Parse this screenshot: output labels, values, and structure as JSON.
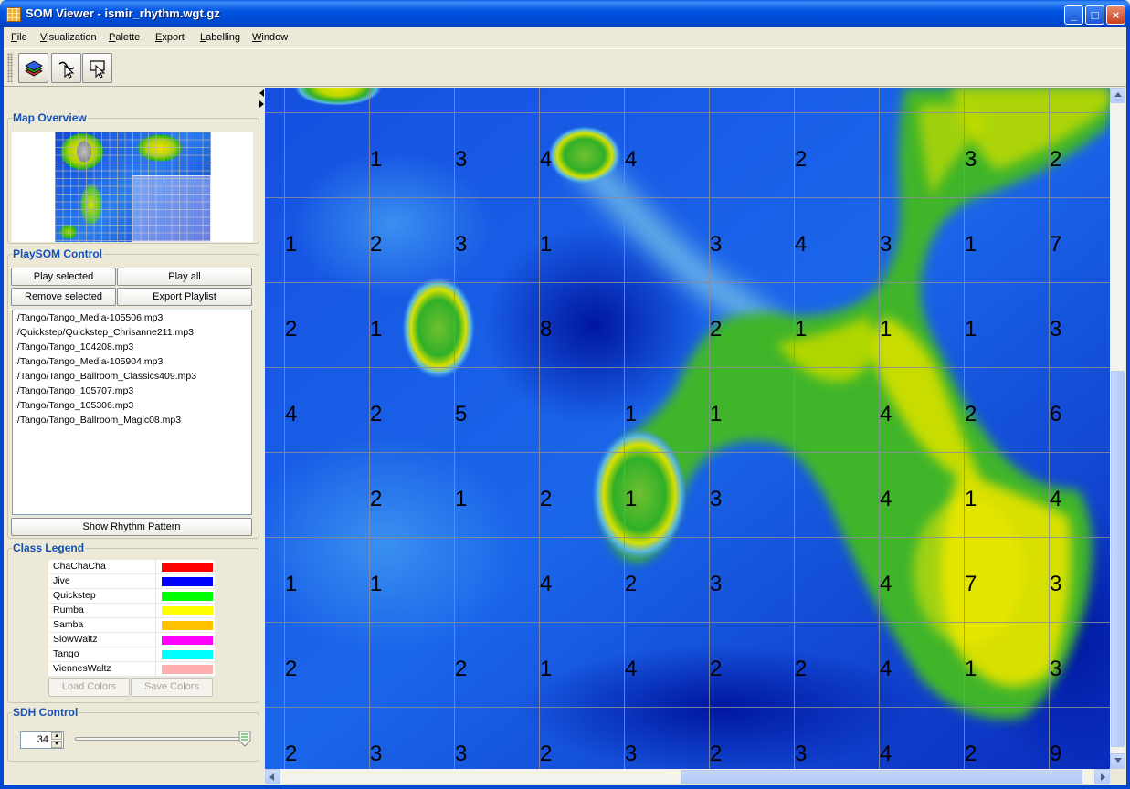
{
  "window": {
    "title": "SOM Viewer - ismir_rhythm.wgt.gz",
    "minimize": "_",
    "maximize": "□",
    "close": "×"
  },
  "menu": [
    "File",
    "Visualization",
    "Palette",
    "Export",
    "Labelling",
    "Window"
  ],
  "toolbar": {
    "icons": [
      "layers-icon",
      "select-pointer-icon",
      "rectangle-select-icon"
    ]
  },
  "map_overview": {
    "title": "Map Overview"
  },
  "playsom": {
    "title": "PlaySOM Control",
    "play_selected": "Play selected",
    "play_all": "Play all",
    "remove_selected": "Remove selected",
    "export_playlist": "Export Playlist",
    "playlist": [
      "./Tango/Tango_Media-105506.mp3",
      "./Quickstep/Quickstep_Chrisanne211.mp3",
      "./Tango/Tango_104208.mp3",
      "./Tango/Tango_Media-105904.mp3",
      "./Tango/Tango_Ballroom_Classics409.mp3",
      "./Tango/Tango_105707.mp3",
      "./Tango/Tango_105306.mp3",
      "./Tango/Tango_Ballroom_Magic08.mp3"
    ],
    "show_rhythm": "Show Rhythm Pattern"
  },
  "legend": {
    "title": "Class Legend",
    "classes": [
      {
        "name": "ChaChaCha",
        "color": "#ff0000"
      },
      {
        "name": "Jive",
        "color": "#0000ff"
      },
      {
        "name": "Quickstep",
        "color": "#00ff00"
      },
      {
        "name": "Rumba",
        "color": "#ffff00"
      },
      {
        "name": "Samba",
        "color": "#ffc000"
      },
      {
        "name": "SlowWaltz",
        "color": "#ff00ff"
      },
      {
        "name": "Tango",
        "color": "#00ffff"
      },
      {
        "name": "ViennesWaltz",
        "color": "#ffafaf"
      }
    ],
    "load_colors": "Load Colors",
    "save_colors": "Save Colors"
  },
  "sdh": {
    "title": "SDH Control",
    "value": "34",
    "slider_level": 0.97
  },
  "map": {
    "rows": [
      [
        "",
        "1",
        "3",
        "4",
        "4",
        "",
        "2",
        "",
        "3",
        "2"
      ],
      [
        "1",
        "2",
        "3",
        "1",
        "",
        "3",
        "4",
        "3",
        "1",
        "7"
      ],
      [
        "2",
        "1",
        "",
        "8",
        "",
        "2",
        "1",
        "1",
        "1",
        "3"
      ],
      [
        "4",
        "2",
        "5",
        "",
        "1",
        "1",
        "",
        "4",
        "2",
        "6"
      ],
      [
        "",
        "2",
        "1",
        "2",
        "1",
        "3",
        "",
        "4",
        "1",
        "4"
      ],
      [
        "1",
        "1",
        "",
        "4",
        "2",
        "3",
        "",
        "4",
        "7",
        "3"
      ],
      [
        "2",
        "",
        "2",
        "1",
        "4",
        "2",
        "2",
        "4",
        "1",
        "3"
      ],
      [
        "2",
        "3",
        "3",
        "2",
        "3",
        "2",
        "3",
        "4",
        "2",
        "9"
      ]
    ]
  }
}
